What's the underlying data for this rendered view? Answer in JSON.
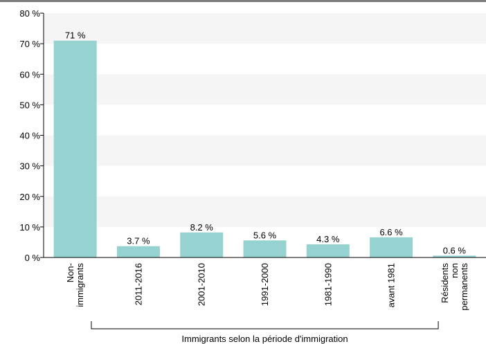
{
  "chart_data": {
    "type": "bar",
    "categories": [
      [
        "Non-",
        "immigrants"
      ],
      [
        "2011-2016"
      ],
      [
        "2001-2010"
      ],
      [
        "1991-2000"
      ],
      [
        "1981-1990"
      ],
      [
        "avant 1981"
      ],
      [
        "Résidents",
        "non",
        "permanents"
      ]
    ],
    "values": [
      71,
      3.7,
      8.2,
      5.6,
      4.3,
      6.6,
      0.6
    ],
    "data_labels": [
      "71 %",
      "3.7 %",
      "8.2 %",
      "5.6 %",
      "4.3 %",
      "6.6 %",
      "0.6 %"
    ],
    "y_ticks": [
      "0 %",
      "10 %",
      "20 %",
      "30 %",
      "40 %",
      "50 %",
      "60 %",
      "70 %",
      "80 %"
    ],
    "ylim": [
      0,
      80
    ],
    "group_label": "Immigrants selon la période d'immigration",
    "bar_color": "#96d3d0",
    "band_color": "#f5f5f5",
    "grid": "alternating horizontal bands",
    "legend": "none"
  }
}
